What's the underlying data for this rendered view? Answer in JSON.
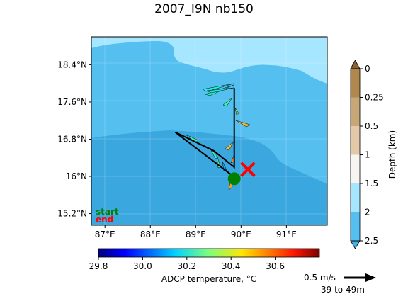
{
  "title": "2007_I9N nb150",
  "map": {
    "lat_ticks": [
      "18.4°N",
      "17.6°N",
      "16.8°N",
      "16°N",
      "15.2°N"
    ],
    "lat_values": [
      18.4,
      17.6,
      16.8,
      16.0,
      15.2
    ],
    "lon_ticks": [
      "87°E",
      "88°E",
      "89°E",
      "90°E",
      "91°E"
    ],
    "lon_values": [
      87,
      88,
      89,
      90,
      91
    ],
    "lon_range": [
      86.7,
      91.9
    ],
    "lat_range": [
      14.95,
      19.0
    ],
    "start_label": "start",
    "end_label": "end",
    "start_color": "#008000",
    "end_color": "#ff0000",
    "track": [
      [
        89.85,
        17.9
      ],
      [
        89.85,
        16.2
      ],
      [
        89.4,
        16.55
      ],
      [
        88.55,
        16.95
      ],
      [
        89.9,
        15.95
      ]
    ],
    "start_point": [
      89.85,
      15.95
    ],
    "end_point": [
      90.15,
      16.15
    ]
  },
  "depth_colorbar": {
    "label": "Depth (km)",
    "ticks": [
      "0",
      "0.25",
      "0.5",
      "1",
      "1.5",
      "2",
      "2.5"
    ],
    "colors": [
      "#b0874c",
      "#c7a677",
      "#e4c9a9",
      "#f7f5f2",
      "#a7e6ff",
      "#55bff0"
    ]
  },
  "temp_colorbar": {
    "label": "ADCP temperature, °C",
    "ticks": [
      "29.8",
      "30.0",
      "30.2",
      "30.4",
      "30.6"
    ],
    "range": [
      29.8,
      30.8
    ]
  },
  "scale": {
    "speed": "0.5 m/s",
    "depth_range": "39 to 49m"
  }
}
